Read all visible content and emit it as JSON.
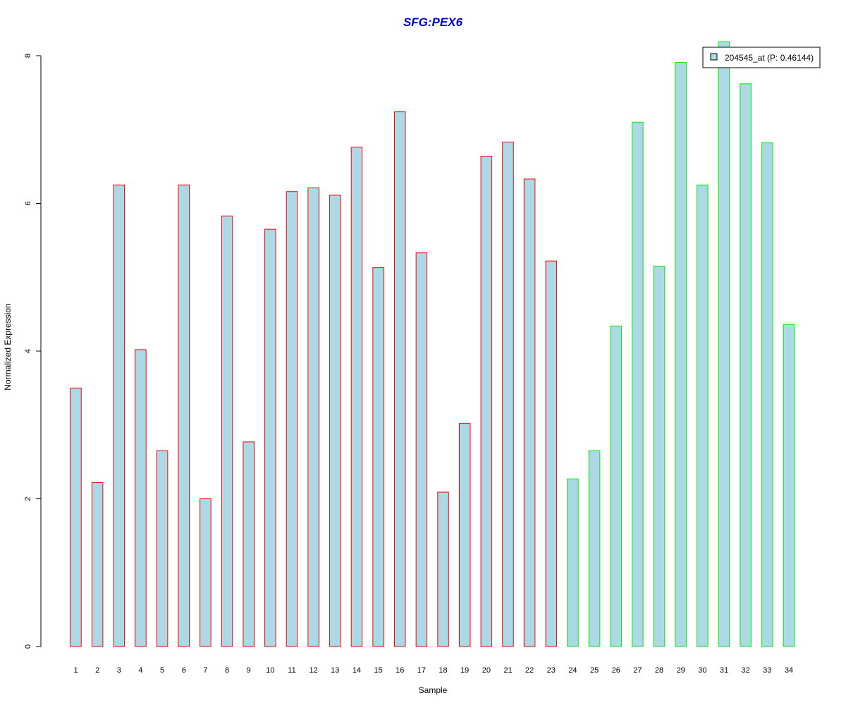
{
  "chart_data": {
    "type": "bar",
    "title": "SFG:PEX6",
    "xlabel": "Sample",
    "ylabel": "Normalized Expression",
    "categories": [
      "1",
      "2",
      "3",
      "4",
      "5",
      "6",
      "7",
      "8",
      "9",
      "10",
      "11",
      "12",
      "13",
      "14",
      "15",
      "16",
      "17",
      "18",
      "19",
      "20",
      "21",
      "22",
      "23",
      "24",
      "25",
      "26",
      "27",
      "28",
      "29",
      "30",
      "31",
      "32",
      "33",
      "34"
    ],
    "series": [
      {
        "name": "204545_at (P: 0.46144)",
        "values": [
          3.5,
          2.22,
          6.25,
          4.02,
          2.65,
          6.25,
          2.0,
          5.83,
          2.77,
          5.65,
          6.16,
          6.21,
          6.11,
          6.76,
          5.13,
          7.24,
          5.33,
          2.09,
          3.02,
          6.64,
          6.83,
          6.33,
          5.22,
          2.27,
          2.65,
          4.34,
          7.1,
          5.15,
          7.91,
          6.25,
          8.19,
          7.62,
          6.82,
          4.36
        ]
      }
    ],
    "groups": [
      {
        "from": 1,
        "to": 23,
        "border_color": "#ff0000"
      },
      {
        "from": 24,
        "to": 34,
        "border_color": "#00ee00"
      }
    ],
    "yticks": [
      0,
      2,
      4,
      6,
      8
    ],
    "ylim": [
      0,
      8.3
    ],
    "grid": false,
    "legend_position": "top-right",
    "colors": {
      "bar_fill": "#add8e6",
      "title": "#0000cc",
      "axis": "#000000",
      "legend_box_fill": "#add8e6"
    }
  }
}
